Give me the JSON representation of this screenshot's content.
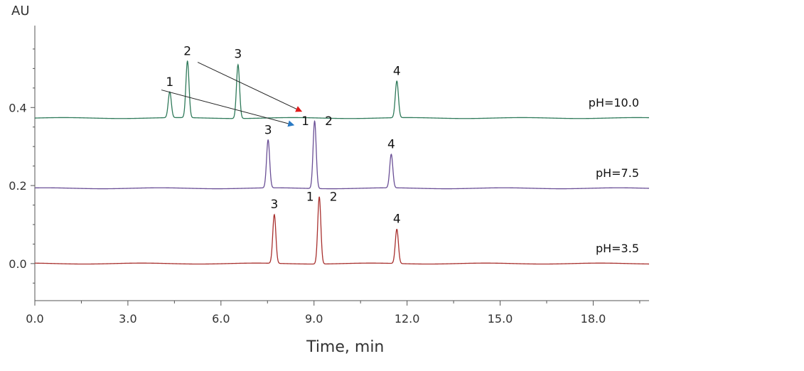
{
  "chart_data": {
    "type": "line",
    "title": "",
    "xlabel": "Time, min",
    "ylabel": "AU",
    "xlim": [
      0.0,
      19.8
    ],
    "ylim": [
      -0.095,
      0.61
    ],
    "x_ticks": [
      {
        "value": 0.0,
        "label": "0.0"
      },
      {
        "value": 3.0,
        "label": "3.0"
      },
      {
        "value": 6.0,
        "label": "6.0"
      },
      {
        "value": 9.0,
        "label": "9.0"
      },
      {
        "value": 12.0,
        "label": "12.0"
      },
      {
        "value": 15.0,
        "label": "15.0"
      },
      {
        "value": 18.0,
        "label": "18.0"
      }
    ],
    "x_minor_ticks": [
      1.5,
      4.5,
      7.5,
      10.5,
      13.5,
      16.5,
      19.5
    ],
    "y_ticks": [
      {
        "value": 0.0,
        "label": "0.0"
      },
      {
        "value": 0.2,
        "label": "0.2"
      },
      {
        "value": 0.4,
        "label": "0.4"
      }
    ],
    "y_minor_ticks": [
      -0.05,
      0.05,
      0.1,
      0.15,
      0.25,
      0.3,
      0.35,
      0.45,
      0.5,
      0.55
    ],
    "grid": false,
    "legend": "none",
    "series": [
      {
        "label": "pH=10.0",
        "color": "#2f7a5a",
        "baseline": 0.373,
        "peaks": [
          {
            "label": "1",
            "x": 4.35,
            "height": 0.439
          },
          {
            "label": "2",
            "x": 4.92,
            "height": 0.518
          },
          {
            "label": "3",
            "x": 6.55,
            "height": 0.511
          },
          {
            "label": "4",
            "x": 11.67,
            "height": 0.467
          }
        ]
      },
      {
        "label": "pH=7.5",
        "color": "#6a4f96",
        "baseline": 0.193,
        "peaks": [
          {
            "label": "3",
            "x": 7.52,
            "height": 0.316
          },
          {
            "label": "1",
            "x": 9.02,
            "height": 0.366
          },
          {
            "label": "2",
            "x": 9.02,
            "height": 0.366
          },
          {
            "label": "4",
            "x": 11.49,
            "height": 0.279
          }
        ]
      },
      {
        "label": "pH=3.5",
        "color": "#a8302e",
        "baseline": 0.0,
        "peaks": [
          {
            "label": "3",
            "x": 7.72,
            "height": 0.125
          },
          {
            "label": "1",
            "x": 9.17,
            "height": 0.172
          },
          {
            "label": "2",
            "x": 9.17,
            "height": 0.172
          },
          {
            "label": "4",
            "x": 11.67,
            "height": 0.088
          }
        ]
      }
    ],
    "annotations": [
      {
        "type": "arrow",
        "from": [
          5.25,
          0.516
        ],
        "to": [
          8.6,
          0.39
        ],
        "color": "#e01a1a"
      },
      {
        "type": "arrow",
        "from": [
          4.08,
          0.445
        ],
        "to": [
          8.35,
          0.355
        ],
        "color": "#2a7ac4"
      }
    ]
  }
}
